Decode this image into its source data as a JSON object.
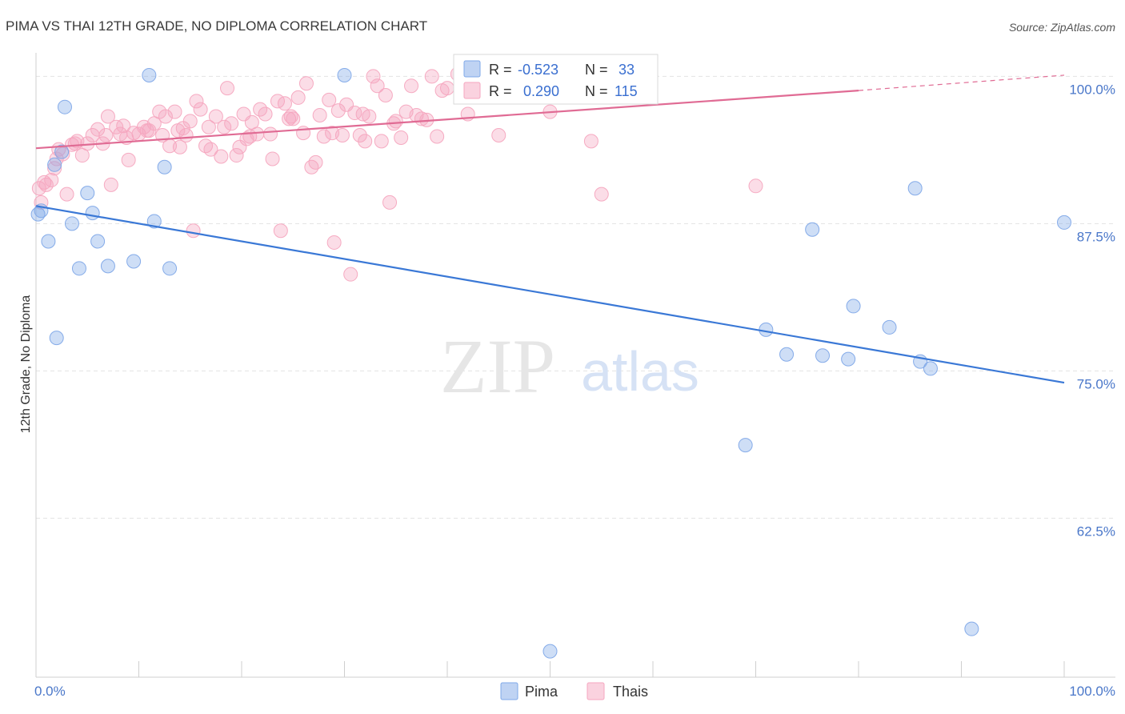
{
  "chart_data": {
    "type": "scatter",
    "title": "PIMA VS THAI 12TH GRADE, NO DIPLOMA CORRELATION CHART",
    "source": "Source: ZipAtlas.com",
    "xlabel": "",
    "ylabel": "12th Grade, No Diploma",
    "xlim": [
      0,
      100
    ],
    "ylim": [
      49,
      102
    ],
    "x_tick_labels": [
      "0.0%",
      "100.0%"
    ],
    "y_ticks": [
      100,
      87.5,
      75,
      62.5
    ],
    "y_tick_labels": [
      "100.0%",
      "87.5%",
      "75.0%",
      "62.5%"
    ],
    "grid": true,
    "watermark": {
      "zip": "ZIP",
      "atlas": "atlas"
    },
    "legend_position": "top-center",
    "series": [
      {
        "name": "Pima",
        "color": "#7fa8e8",
        "line_color": "#3a78d6",
        "r_label": "R =",
        "r_value": "-0.523",
        "n_label": "N =",
        "n_value": "33",
        "trend": {
          "x0": 0,
          "y0": 89.0,
          "x1": 100,
          "y1": 74.0
        },
        "points": [
          [
            0.2,
            88.3
          ],
          [
            0.5,
            88.6
          ],
          [
            1.2,
            86.0
          ],
          [
            1.8,
            92.5
          ],
          [
            2.5,
            93.6
          ],
          [
            2.8,
            97.4
          ],
          [
            3.5,
            87.5
          ],
          [
            4.2,
            83.7
          ],
          [
            5.0,
            90.1
          ],
          [
            5.5,
            88.4
          ],
          [
            6.0,
            86.0
          ],
          [
            7.0,
            83.9
          ],
          [
            9.5,
            84.3
          ],
          [
            11.0,
            100.1
          ],
          [
            11.5,
            87.7
          ],
          [
            12.5,
            92.3
          ],
          [
            13.0,
            83.7
          ],
          [
            30.0,
            100.1
          ],
          [
            2.0,
            77.8
          ],
          [
            50.0,
            51.2
          ],
          [
            69.0,
            68.7
          ],
          [
            71.0,
            78.5
          ],
          [
            73.0,
            76.4
          ],
          [
            75.5,
            87.0
          ],
          [
            76.5,
            76.3
          ],
          [
            79.0,
            76.0
          ],
          [
            79.5,
            80.5
          ],
          [
            83.0,
            78.7
          ],
          [
            85.5,
            90.5
          ],
          [
            86.0,
            75.8
          ],
          [
            87.0,
            75.2
          ],
          [
            91.0,
            53.1
          ],
          [
            100.0,
            87.6
          ]
        ]
      },
      {
        "name": "Thais",
        "color": "#f5a6bf",
        "line_color": "#e06b94",
        "r_label": "R =",
        "r_value": "0.290",
        "n_label": "N =",
        "n_value": "115",
        "trend": {
          "x0": 0,
          "y0": 93.9,
          "x1": 80,
          "y1": 98.8,
          "dash_x1": 100,
          "dash_y1": 100.1
        },
        "points": [
          [
            0.3,
            90.5
          ],
          [
            0.8,
            91.0
          ],
          [
            1.5,
            91.2
          ],
          [
            1.8,
            92.2
          ],
          [
            2.2,
            93.8
          ],
          [
            2.6,
            93.4
          ],
          [
            3.0,
            90.0
          ],
          [
            3.5,
            94.2
          ],
          [
            4.0,
            94.5
          ],
          [
            4.5,
            93.3
          ],
          [
            5.0,
            94.3
          ],
          [
            5.5,
            95.0
          ],
          [
            6.0,
            95.5
          ],
          [
            6.5,
            94.3
          ],
          [
            7.0,
            96.6
          ],
          [
            7.3,
            90.8
          ],
          [
            7.8,
            95.7
          ],
          [
            8.2,
            95.1
          ],
          [
            8.5,
            95.8
          ],
          [
            9.0,
            92.9
          ],
          [
            9.5,
            95.2
          ],
          [
            10.0,
            95.1
          ],
          [
            10.5,
            95.7
          ],
          [
            11.0,
            95.4
          ],
          [
            11.5,
            96.0
          ],
          [
            12.0,
            97.0
          ],
          [
            12.3,
            95.0
          ],
          [
            12.6,
            96.6
          ],
          [
            13.0,
            94.1
          ],
          [
            13.5,
            97.0
          ],
          [
            14.0,
            94.0
          ],
          [
            14.3,
            95.6
          ],
          [
            14.6,
            95.0
          ],
          [
            15.0,
            96.2
          ],
          [
            15.3,
            86.9
          ],
          [
            15.6,
            97.9
          ],
          [
            16.0,
            97.2
          ],
          [
            16.5,
            94.1
          ],
          [
            17.0,
            93.8
          ],
          [
            17.5,
            96.6
          ],
          [
            18.0,
            93.2
          ],
          [
            18.3,
            95.7
          ],
          [
            18.6,
            99.0
          ],
          [
            19.0,
            96.0
          ],
          [
            19.5,
            93.3
          ],
          [
            19.8,
            94.0
          ],
          [
            20.2,
            96.8
          ],
          [
            20.5,
            94.7
          ],
          [
            21.0,
            96.1
          ],
          [
            21.5,
            95.1
          ],
          [
            21.8,
            97.2
          ],
          [
            22.3,
            96.8
          ],
          [
            22.8,
            95.1
          ],
          [
            23.0,
            93.0
          ],
          [
            23.5,
            97.9
          ],
          [
            23.8,
            86.9
          ],
          [
            24.2,
            97.7
          ],
          [
            24.6,
            96.4
          ],
          [
            25.0,
            96.4
          ],
          [
            25.5,
            98.2
          ],
          [
            26.0,
            95.2
          ],
          [
            26.3,
            99.4
          ],
          [
            26.8,
            92.3
          ],
          [
            27.2,
            92.7
          ],
          [
            27.6,
            96.7
          ],
          [
            28.0,
            94.9
          ],
          [
            28.5,
            98.0
          ],
          [
            29.0,
            85.9
          ],
          [
            29.4,
            97.1
          ],
          [
            29.8,
            95.0
          ],
          [
            30.2,
            97.6
          ],
          [
            30.6,
            83.2
          ],
          [
            31.0,
            96.9
          ],
          [
            31.5,
            95.0
          ],
          [
            32.0,
            94.5
          ],
          [
            32.4,
            96.6
          ],
          [
            32.8,
            100.0
          ],
          [
            33.2,
            99.2
          ],
          [
            33.6,
            94.5
          ],
          [
            34.0,
            98.4
          ],
          [
            34.4,
            89.3
          ],
          [
            35.0,
            96.2
          ],
          [
            35.5,
            94.8
          ],
          [
            36.0,
            97.0
          ],
          [
            36.5,
            99.2
          ],
          [
            37.0,
            96.7
          ],
          [
            37.5,
            96.4
          ],
          [
            38.0,
            96.3
          ],
          [
            38.5,
            100.0
          ],
          [
            39.0,
            94.9
          ],
          [
            39.5,
            98.8
          ],
          [
            40.0,
            99.0
          ],
          [
            41.0,
            100.2
          ],
          [
            42.0,
            96.8
          ],
          [
            45.0,
            95.0
          ],
          [
            47.0,
            99.5
          ],
          [
            50.0,
            97.0
          ],
          [
            53.0,
            99.0
          ],
          [
            54.0,
            94.5
          ],
          [
            55.0,
            90.0
          ],
          [
            70.0,
            90.7
          ],
          [
            0.5,
            89.3
          ],
          [
            1.0,
            90.8
          ],
          [
            2.0,
            93.0
          ],
          [
            3.8,
            94.3
          ],
          [
            6.8,
            95.0
          ],
          [
            8.8,
            94.8
          ],
          [
            10.8,
            95.4
          ],
          [
            13.8,
            95.4
          ],
          [
            16.8,
            95.7
          ],
          [
            20.8,
            94.9
          ],
          [
            24.8,
            96.6
          ],
          [
            28.8,
            95.2
          ],
          [
            31.8,
            96.8
          ],
          [
            34.8,
            96.0
          ]
        ]
      }
    ]
  }
}
